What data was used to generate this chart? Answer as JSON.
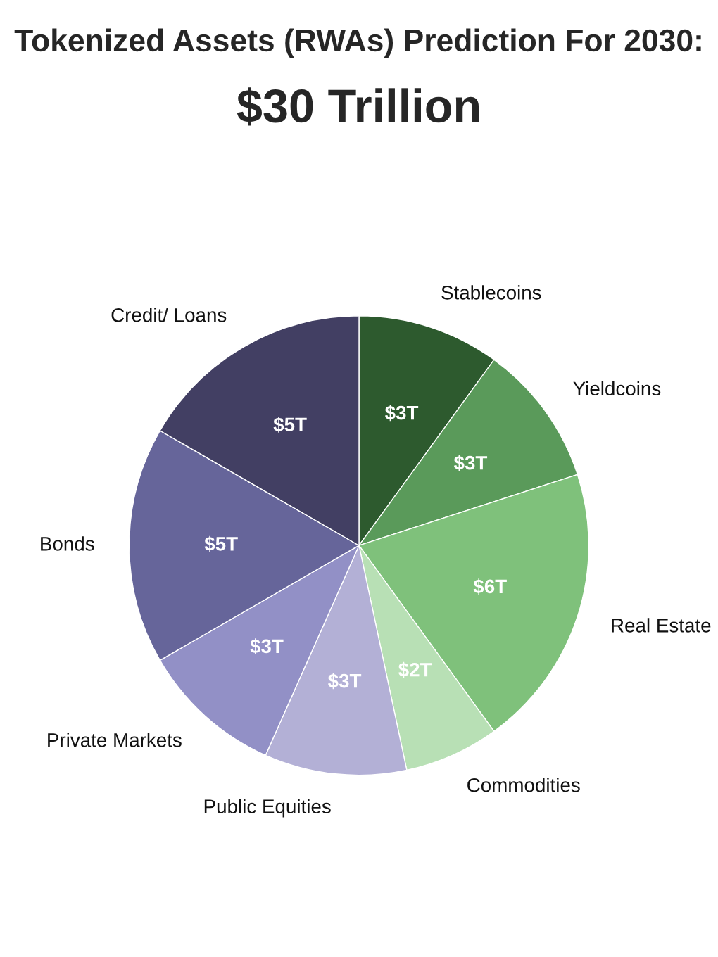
{
  "chart_data": {
    "type": "pie",
    "title": "Tokenized Assets (RWAs) Prediction For 2030:",
    "subtitle": "$30 Trillion",
    "categories": [
      "Stablecoins",
      "Yieldcoins",
      "Real Estate",
      "Commodities",
      "Public Equities",
      "Private Markets",
      "Bonds",
      "Credit/ Loans"
    ],
    "values": [
      3,
      3,
      6,
      2,
      3,
      3,
      5,
      5
    ],
    "value_labels": [
      "$3T",
      "$3T",
      "$6T",
      "$2T",
      "$3T",
      "$3T",
      "$5T",
      "$5T"
    ],
    "colors": [
      "#2d5a2e",
      "#5a9a5a",
      "#7fc17b",
      "#b8e0b5",
      "#b3b0d6",
      "#9290c6",
      "#66659a",
      "#423f63"
    ],
    "legend": false
  }
}
